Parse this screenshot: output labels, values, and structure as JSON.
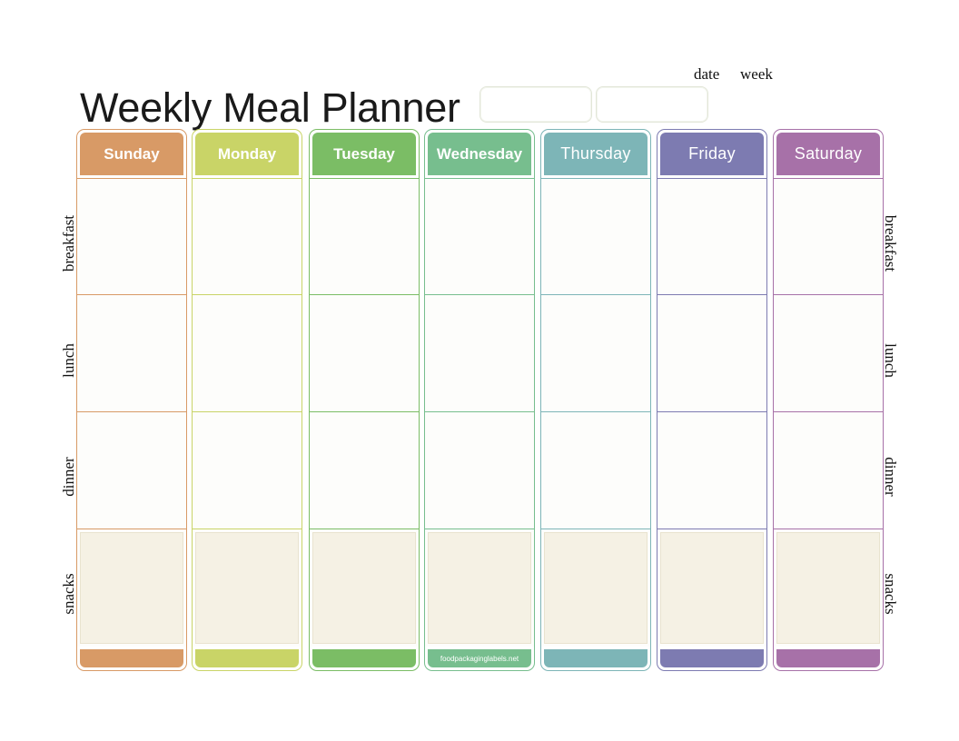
{
  "title": "Weekly Meal Planner",
  "fields": {
    "date_label": "date",
    "week_label": "week"
  },
  "meals": [
    "breakfast",
    "lunch",
    "dinner",
    "snacks"
  ],
  "days": [
    {
      "name": "Sunday",
      "color": "#d89a66"
    },
    {
      "name": "Monday",
      "color": "#c9d467"
    },
    {
      "name": "Tuesday",
      "color": "#7bbd65"
    },
    {
      "name": "Wednesday",
      "color": "#77be8e"
    },
    {
      "name": "Thursday",
      "color": "#7db5b7"
    },
    {
      "name": "Friday",
      "color": "#7d7bb1"
    },
    {
      "name": "Saturday",
      "color": "#a771a8"
    }
  ],
  "footer_text": "foodpackaginglabels.net"
}
